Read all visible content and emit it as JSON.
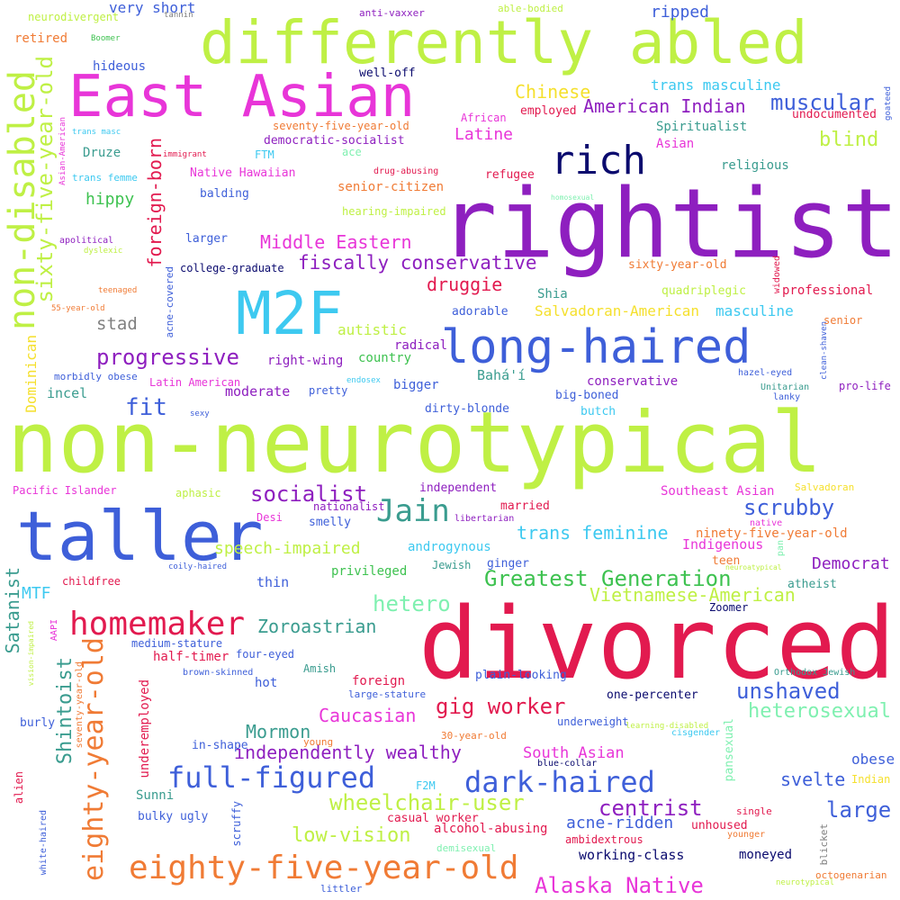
{
  "words": [
    {
      "text": "non-neurotypical",
      "color": "#bff045"
    },
    {
      "text": "divorced",
      "color": "#e21a4f"
    },
    {
      "text": "rightist",
      "color": "#8e1fbf"
    },
    {
      "text": "differently abled",
      "color": "#bff045"
    },
    {
      "text": "taller",
      "color": "#3e5fd9"
    },
    {
      "text": "East Asian",
      "color": "#e835d8"
    },
    {
      "text": "M2F",
      "color": "#3dc9f0"
    },
    {
      "text": "long-haired",
      "color": "#3e5fd9"
    },
    {
      "text": "non-disabled",
      "color": "#bff045"
    },
    {
      "text": "rich",
      "color": "#0a0a6e"
    },
    {
      "text": "eighty-five-year-old",
      "color": "#f07b35"
    },
    {
      "text": "eighty-year-old",
      "color": "#f07b35"
    },
    {
      "text": "sixty-five-year-old",
      "color": "#bff045"
    },
    {
      "text": "homemaker",
      "color": "#e21a4f"
    },
    {
      "text": "full-figured",
      "color": "#3e5fd9"
    },
    {
      "text": "dark-haired",
      "color": "#3e5fd9"
    },
    {
      "text": "Jain",
      "color": "#3a9c8f"
    },
    {
      "text": "foreign-born",
      "color": "#e21a4f"
    },
    {
      "text": "wheelchair-user",
      "color": "#bff045"
    },
    {
      "text": "Alaska Native",
      "color": "#e835d8"
    },
    {
      "text": "Greatest Generation",
      "color": "#3ec250"
    },
    {
      "text": "Vietnamese-American",
      "color": "#bff045"
    },
    {
      "text": "fiscally conservative",
      "color": "#8e1fbf"
    },
    {
      "text": "socialist",
      "color": "#8e1fbf"
    },
    {
      "text": "progressive",
      "color": "#8e1fbf"
    },
    {
      "text": "Middle Eastern",
      "color": "#e835d8"
    },
    {
      "text": "American Indian",
      "color": "#8e1fbf"
    },
    {
      "text": "muscular",
      "color": "#3e5fd9"
    },
    {
      "text": "Chinese",
      "color": "#f5e02e"
    },
    {
      "text": "centrist",
      "color": "#8e1fbf"
    },
    {
      "text": "unshaved",
      "color": "#3e5fd9"
    },
    {
      "text": "heterosexual",
      "color": "#7ff0b0"
    },
    {
      "text": "scrubby",
      "color": "#3e5fd9"
    },
    {
      "text": "trans feminine",
      "color": "#3dc9f0"
    },
    {
      "text": "gig worker",
      "color": "#e21a4f"
    },
    {
      "text": "Caucasian",
      "color": "#e835d8"
    },
    {
      "text": "Mormon",
      "color": "#3a9c8f"
    },
    {
      "text": "independently wealthy",
      "color": "#8e1fbf"
    },
    {
      "text": "Zoroastrian",
      "color": "#3a9c8f"
    },
    {
      "text": "Shintoist",
      "color": "#3a9c8f"
    },
    {
      "text": "Satanist",
      "color": "#3a9c8f"
    },
    {
      "text": "hetero",
      "color": "#7ff0b0"
    },
    {
      "text": "fit",
      "color": "#3e5fd9"
    },
    {
      "text": "blind",
      "color": "#bff045"
    },
    {
      "text": "druggie",
      "color": "#e21a4f"
    },
    {
      "text": "large",
      "color": "#3e5fd9"
    },
    {
      "text": "low-vision",
      "color": "#bff045"
    },
    {
      "text": "speech-impaired",
      "color": "#bff045"
    },
    {
      "text": "Democrat",
      "color": "#8e1fbf"
    },
    {
      "text": "svelte",
      "color": "#3e5fd9"
    },
    {
      "text": "South Asian",
      "color": "#e835d8"
    },
    {
      "text": "hippy",
      "color": "#3ec250"
    },
    {
      "text": "Latine",
      "color": "#e835d8"
    },
    {
      "text": "stad",
      "color": "#808080"
    },
    {
      "text": "acne-ridden",
      "color": "#3e5fd9"
    },
    {
      "text": "ripped",
      "color": "#3e5fd9"
    },
    {
      "text": "trans masculine",
      "color": "#3dc9f0"
    },
    {
      "text": "Salvadoran-American",
      "color": "#f5e02e"
    },
    {
      "text": "masculine",
      "color": "#3dc9f0"
    },
    {
      "text": "autistic",
      "color": "#bff045"
    },
    {
      "text": "obese",
      "color": "#3e5fd9"
    },
    {
      "text": "MTF",
      "color": "#3dc9f0"
    },
    {
      "text": "very short",
      "color": "#3e5fd9"
    },
    {
      "text": "Dominican",
      "color": "#f5e02e"
    },
    {
      "text": "working-class",
      "color": "#0a0a6e"
    },
    {
      "text": "androgynous",
      "color": "#3dc9f0"
    },
    {
      "text": "Indigenous",
      "color": "#e835d8"
    },
    {
      "text": "ninety-five-year-old",
      "color": "#f07b35"
    },
    {
      "text": "incel",
      "color": "#3a9c8f"
    },
    {
      "text": "moderate",
      "color": "#8e1fbf"
    },
    {
      "text": "right-wing",
      "color": "#8e1fbf"
    },
    {
      "text": "Spiritualist",
      "color": "#3a9c8f"
    },
    {
      "text": "underemployed",
      "color": "#e21a4f"
    },
    {
      "text": "undocumented",
      "color": "#e21a4f"
    },
    {
      "text": "nationalist",
      "color": "#8e1fbf"
    },
    {
      "text": "independent",
      "color": "#8e1fbf"
    },
    {
      "text": "Southeast Asian",
      "color": "#e835d8"
    },
    {
      "text": "privileged",
      "color": "#3ec250"
    },
    {
      "text": "Sunni",
      "color": "#3a9c8f"
    },
    {
      "text": "thin",
      "color": "#3e5fd9"
    },
    {
      "text": "half-timer",
      "color": "#e21a4f"
    },
    {
      "text": "married",
      "color": "#e21a4f"
    },
    {
      "text": "conservative",
      "color": "#8e1fbf"
    },
    {
      "text": "big-boned",
      "color": "#3e5fd9"
    },
    {
      "text": "butch",
      "color": "#3dc9f0"
    },
    {
      "text": "Bahá'í",
      "color": "#3a9c8f"
    },
    {
      "text": "adorable",
      "color": "#3e5fd9"
    },
    {
      "text": "Shia",
      "color": "#3a9c8f"
    },
    {
      "text": "radical",
      "color": "#8e1fbf"
    },
    {
      "text": "country",
      "color": "#3ec250"
    },
    {
      "text": "bigger",
      "color": "#3e5fd9"
    },
    {
      "text": "dirty-blonde",
      "color": "#3e5fd9"
    },
    {
      "text": "pretty",
      "color": "#3e5fd9"
    },
    {
      "text": "foreign",
      "color": "#e21a4f"
    },
    {
      "text": "hot",
      "color": "#3e5fd9"
    },
    {
      "text": "one-percenter",
      "color": "#0a0a6e"
    },
    {
      "text": "plain-looking",
      "color": "#3e5fd9"
    },
    {
      "text": "casual worker",
      "color": "#e21a4f"
    },
    {
      "text": "alcohol-abusing",
      "color": "#e21a4f"
    },
    {
      "text": "ambidextrous",
      "color": "#e21a4f"
    },
    {
      "text": "moneyed",
      "color": "#0a0a6e"
    },
    {
      "text": "unhoused",
      "color": "#e21a4f"
    },
    {
      "text": "senior-citizen",
      "color": "#f07b35"
    },
    {
      "text": "refugee",
      "color": "#e21a4f"
    },
    {
      "text": "religious",
      "color": "#3a9c8f"
    },
    {
      "text": "sixty-year-old",
      "color": "#f07b35"
    },
    {
      "text": "quadriplegic",
      "color": "#bff045"
    },
    {
      "text": "professional",
      "color": "#e21a4f"
    },
    {
      "text": "employed",
      "color": "#e21a4f"
    },
    {
      "text": "Asian",
      "color": "#e835d8"
    },
    {
      "text": "retired",
      "color": "#f07b35"
    },
    {
      "text": "hideous",
      "color": "#3e5fd9"
    },
    {
      "text": "well-off",
      "color": "#0a0a6e"
    },
    {
      "text": "college-graduate",
      "color": "#0a0a6e"
    },
    {
      "text": "balding",
      "color": "#3e5fd9"
    },
    {
      "text": "larger",
      "color": "#3e5fd9"
    },
    {
      "text": "Druze",
      "color": "#3a9c8f"
    },
    {
      "text": "Native Hawaiian",
      "color": "#e835d8"
    },
    {
      "text": "democratic-socialist",
      "color": "#8e1fbf"
    },
    {
      "text": "seventy-five-year-old",
      "color": "#f07b35"
    },
    {
      "text": "FTM",
      "color": "#3dc9f0"
    },
    {
      "text": "African",
      "color": "#e835d8"
    },
    {
      "text": "hearing-impaired",
      "color": "#bff045"
    },
    {
      "text": "Pacific Islander",
      "color": "#e835d8"
    },
    {
      "text": "aphasic",
      "color": "#bff045"
    },
    {
      "text": "Desi",
      "color": "#e835d8"
    },
    {
      "text": "smelly",
      "color": "#3e5fd9"
    },
    {
      "text": "Latin American",
      "color": "#e835d8"
    },
    {
      "text": "Jewish",
      "color": "#3a9c8f"
    },
    {
      "text": "ginger",
      "color": "#3e5fd9"
    },
    {
      "text": "teen",
      "color": "#f07b35"
    },
    {
      "text": "atheist",
      "color": "#3a9c8f"
    },
    {
      "text": "Zoomer",
      "color": "#0a0a6e"
    },
    {
      "text": "childfree",
      "color": "#e21a4f"
    },
    {
      "text": "Amish",
      "color": "#3a9c8f"
    },
    {
      "text": "four-eyed",
      "color": "#3e5fd9"
    },
    {
      "text": "medium-stature",
      "color": "#3e5fd9"
    },
    {
      "text": "in-shape",
      "color": "#3e5fd9"
    },
    {
      "text": "burly",
      "color": "#3e5fd9"
    },
    {
      "text": "bulky",
      "color": "#3e5fd9"
    },
    {
      "text": "ugly",
      "color": "#3e5fd9"
    },
    {
      "text": "F2M",
      "color": "#3dc9f0"
    },
    {
      "text": "underweight",
      "color": "#3e5fd9"
    },
    {
      "text": "30-year-old",
      "color": "#f07b35"
    },
    {
      "text": "young",
      "color": "#f07b35"
    },
    {
      "text": "Indian",
      "color": "#f5e02e"
    },
    {
      "text": "single",
      "color": "#e21a4f"
    },
    {
      "text": "younger",
      "color": "#f07b35"
    },
    {
      "text": "pro-life",
      "color": "#8e1fbf"
    },
    {
      "text": "senior",
      "color": "#f07b35"
    },
    {
      "text": "Salvadoran",
      "color": "#f5e02e"
    },
    {
      "text": "lanky",
      "color": "#3e5fd9"
    },
    {
      "text": "Unitarian",
      "color": "#3a9c8f"
    },
    {
      "text": "hazel-eyed",
      "color": "#3e5fd9"
    },
    {
      "text": "native",
      "color": "#e835d8"
    },
    {
      "text": "sexy",
      "color": "#3e5fd9"
    },
    {
      "text": "endosex",
      "color": "#3dc9f0"
    },
    {
      "text": "libertarian",
      "color": "#8e1fbf"
    },
    {
      "text": "coily-haired",
      "color": "#3e5fd9"
    },
    {
      "text": "brown-skinned",
      "color": "#3e5fd9"
    },
    {
      "text": "large-stature",
      "color": "#3e5fd9"
    },
    {
      "text": "blue-collar",
      "color": "#0a0a6e"
    },
    {
      "text": "cisgender",
      "color": "#3dc9f0"
    },
    {
      "text": "learning-disabled",
      "color": "#bff045"
    },
    {
      "text": "Orthodox Jewish",
      "color": "#3a9c8f"
    },
    {
      "text": "neurotypical",
      "color": "#bff045"
    },
    {
      "text": "demisexual",
      "color": "#7ff0b0"
    },
    {
      "text": "littler",
      "color": "#3e5fd9"
    },
    {
      "text": "octogenarian",
      "color": "#f07b35"
    },
    {
      "text": "neurodivergent",
      "color": "#bff045"
    },
    {
      "text": "tannin",
      "color": "#808080"
    },
    {
      "text": "anti-vaxxer",
      "color": "#8e1fbf"
    },
    {
      "text": "able-bodied",
      "color": "#bff045"
    },
    {
      "text": "Boomer",
      "color": "#3ec250"
    },
    {
      "text": "trans masc",
      "color": "#3dc9f0"
    },
    {
      "text": "immigrant",
      "color": "#e21a4f"
    },
    {
      "text": "trans femme",
      "color": "#3dc9f0"
    },
    {
      "text": "drug-abusing",
      "color": "#e21a4f"
    },
    {
      "text": "ace",
      "color": "#7ff0b0"
    },
    {
      "text": "apolitical",
      "color": "#8e1fbf"
    },
    {
      "text": "dyslexic",
      "color": "#bff045"
    },
    {
      "text": "teenaged",
      "color": "#f07b35"
    },
    {
      "text": "55-year-old",
      "color": "#f07b35"
    },
    {
      "text": "homosexual",
      "color": "#7ff0b0"
    },
    {
      "text": "morbidly obese",
      "color": "#3e5fd9"
    },
    {
      "text": "AAPI",
      "color": "#e835d8"
    },
    {
      "text": "pan",
      "color": "#7ff0b0"
    },
    {
      "text": "neuroatypical",
      "color": "#bff045"
    },
    {
      "text": "goateed",
      "color": "#3e5fd9"
    },
    {
      "text": "Asian-American",
      "color": "#e835d8"
    },
    {
      "text": "acne-covered",
      "color": "#3e5fd9"
    },
    {
      "text": "widowed",
      "color": "#e21a4f"
    },
    {
      "text": "clean-shaven",
      "color": "#3e5fd9"
    },
    {
      "text": "vision-impaired",
      "color": "#bff045"
    },
    {
      "text": "seventy-year-old",
      "color": "#f07b35"
    },
    {
      "text": "alien",
      "color": "#e21a4f"
    },
    {
      "text": "white-haired",
      "color": "#3e5fd9"
    },
    {
      "text": "scruffy",
      "color": "#3e5fd9"
    },
    {
      "text": "pansexual",
      "color": "#7ff0b0"
    },
    {
      "text": "blicket",
      "color": "#808080"
    }
  ]
}
